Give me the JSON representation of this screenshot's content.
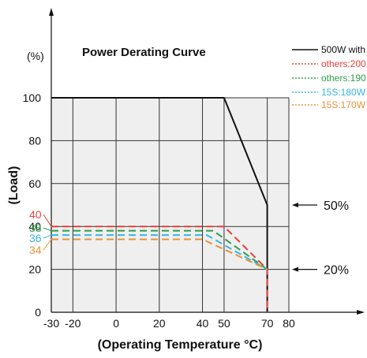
{
  "chart_data": {
    "type": "line",
    "title": "Power Derating Curve",
    "xlabel": "(Operating Temperature °C)",
    "ylabel": "(Load)",
    "y_unit": "(%)",
    "xlim": [
      -30,
      80
    ],
    "ylim": [
      0,
      100
    ],
    "x_ticks": [
      -30,
      -20,
      0,
      20,
      40,
      50,
      70,
      80
    ],
    "x_tick_labels": [
      "-30",
      "-20",
      "0",
      "20",
      "40",
      "50",
      "70",
      "80"
    ],
    "y_ticks": [
      0,
      20,
      40,
      60,
      80,
      100
    ],
    "y_tick_labels": [
      "0",
      "20",
      "40",
      "60",
      "80",
      "100"
    ],
    "grid": true,
    "legend_position": "top-right",
    "series": [
      {
        "name": "500W with",
        "color": "#111111",
        "dash": "solid",
        "x": [
          -30,
          50,
          70,
          70,
          70
        ],
        "y": [
          100,
          100,
          50,
          20,
          0
        ]
      },
      {
        "name": "others:200",
        "color": "#e8413a",
        "dash": "dashed",
        "x": [
          -30,
          50,
          70,
          70
        ],
        "y": [
          40,
          40,
          20,
          0
        ]
      },
      {
        "name": "others:190",
        "color": "#2e9e49",
        "dash": "dashed",
        "x": [
          -30,
          45,
          70
        ],
        "y": [
          38,
          38,
          20
        ]
      },
      {
        "name": "15S:180W",
        "color": "#35b6e0",
        "dash": "dashed",
        "x": [
          -30,
          42,
          70
        ],
        "y": [
          36,
          36,
          20
        ]
      },
      {
        "name": "15S:170W",
        "color": "#e8923a",
        "dash": "dashed",
        "x": [
          -30,
          40,
          70
        ],
        "y": [
          34,
          34,
          20
        ]
      }
    ],
    "side_labels": [
      {
        "text": "40",
        "color": "#e8413a",
        "value": 40
      },
      {
        "text": "38",
        "color": "#2e9e49",
        "value": 38
      },
      {
        "text": "36",
        "color": "#35b6e0",
        "value": 36
      },
      {
        "text": "34",
        "color": "#e8923a",
        "value": 34
      }
    ],
    "annotations": [
      {
        "text": "50%",
        "value": 50
      },
      {
        "text": "20%",
        "value": 20
      }
    ]
  }
}
